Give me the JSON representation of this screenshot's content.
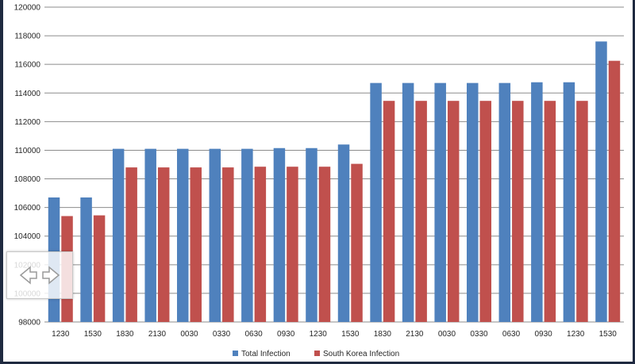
{
  "chart_data": {
    "type": "bar",
    "categories": [
      "1230",
      "1530",
      "1830",
      "2130",
      "0030",
      "0330",
      "0630",
      "0930",
      "1230",
      "1530",
      "1830",
      "2130",
      "0030",
      "0330",
      "0630",
      "0930",
      "1230",
      "1530"
    ],
    "series": [
      {
        "name": "Total Infection",
        "color": "#4f81bd",
        "values": [
          106700,
          106700,
          110100,
          110100,
          110100,
          110100,
          110100,
          110150,
          110150,
          110400,
          114700,
          114700,
          114700,
          114700,
          114700,
          114750,
          114750,
          117600
        ]
      },
      {
        "name": "South Korea Infection",
        "color": "#c0504d",
        "values": [
          105400,
          105450,
          108800,
          108800,
          108800,
          108800,
          108850,
          108850,
          108850,
          109050,
          113450,
          113450,
          113450,
          113450,
          113450,
          113450,
          113450,
          116250
        ]
      }
    ],
    "ylim": [
      98000,
      120000
    ],
    "yticks": [
      "98000",
      "100000",
      "102000",
      "104000",
      "106000",
      "108000",
      "110000",
      "112000",
      "114000",
      "116000",
      "118000",
      "120000"
    ],
    "grid": true,
    "legend_position": "bottom-center"
  },
  "overlay": {
    "icon": "expand-arrows-icon"
  }
}
